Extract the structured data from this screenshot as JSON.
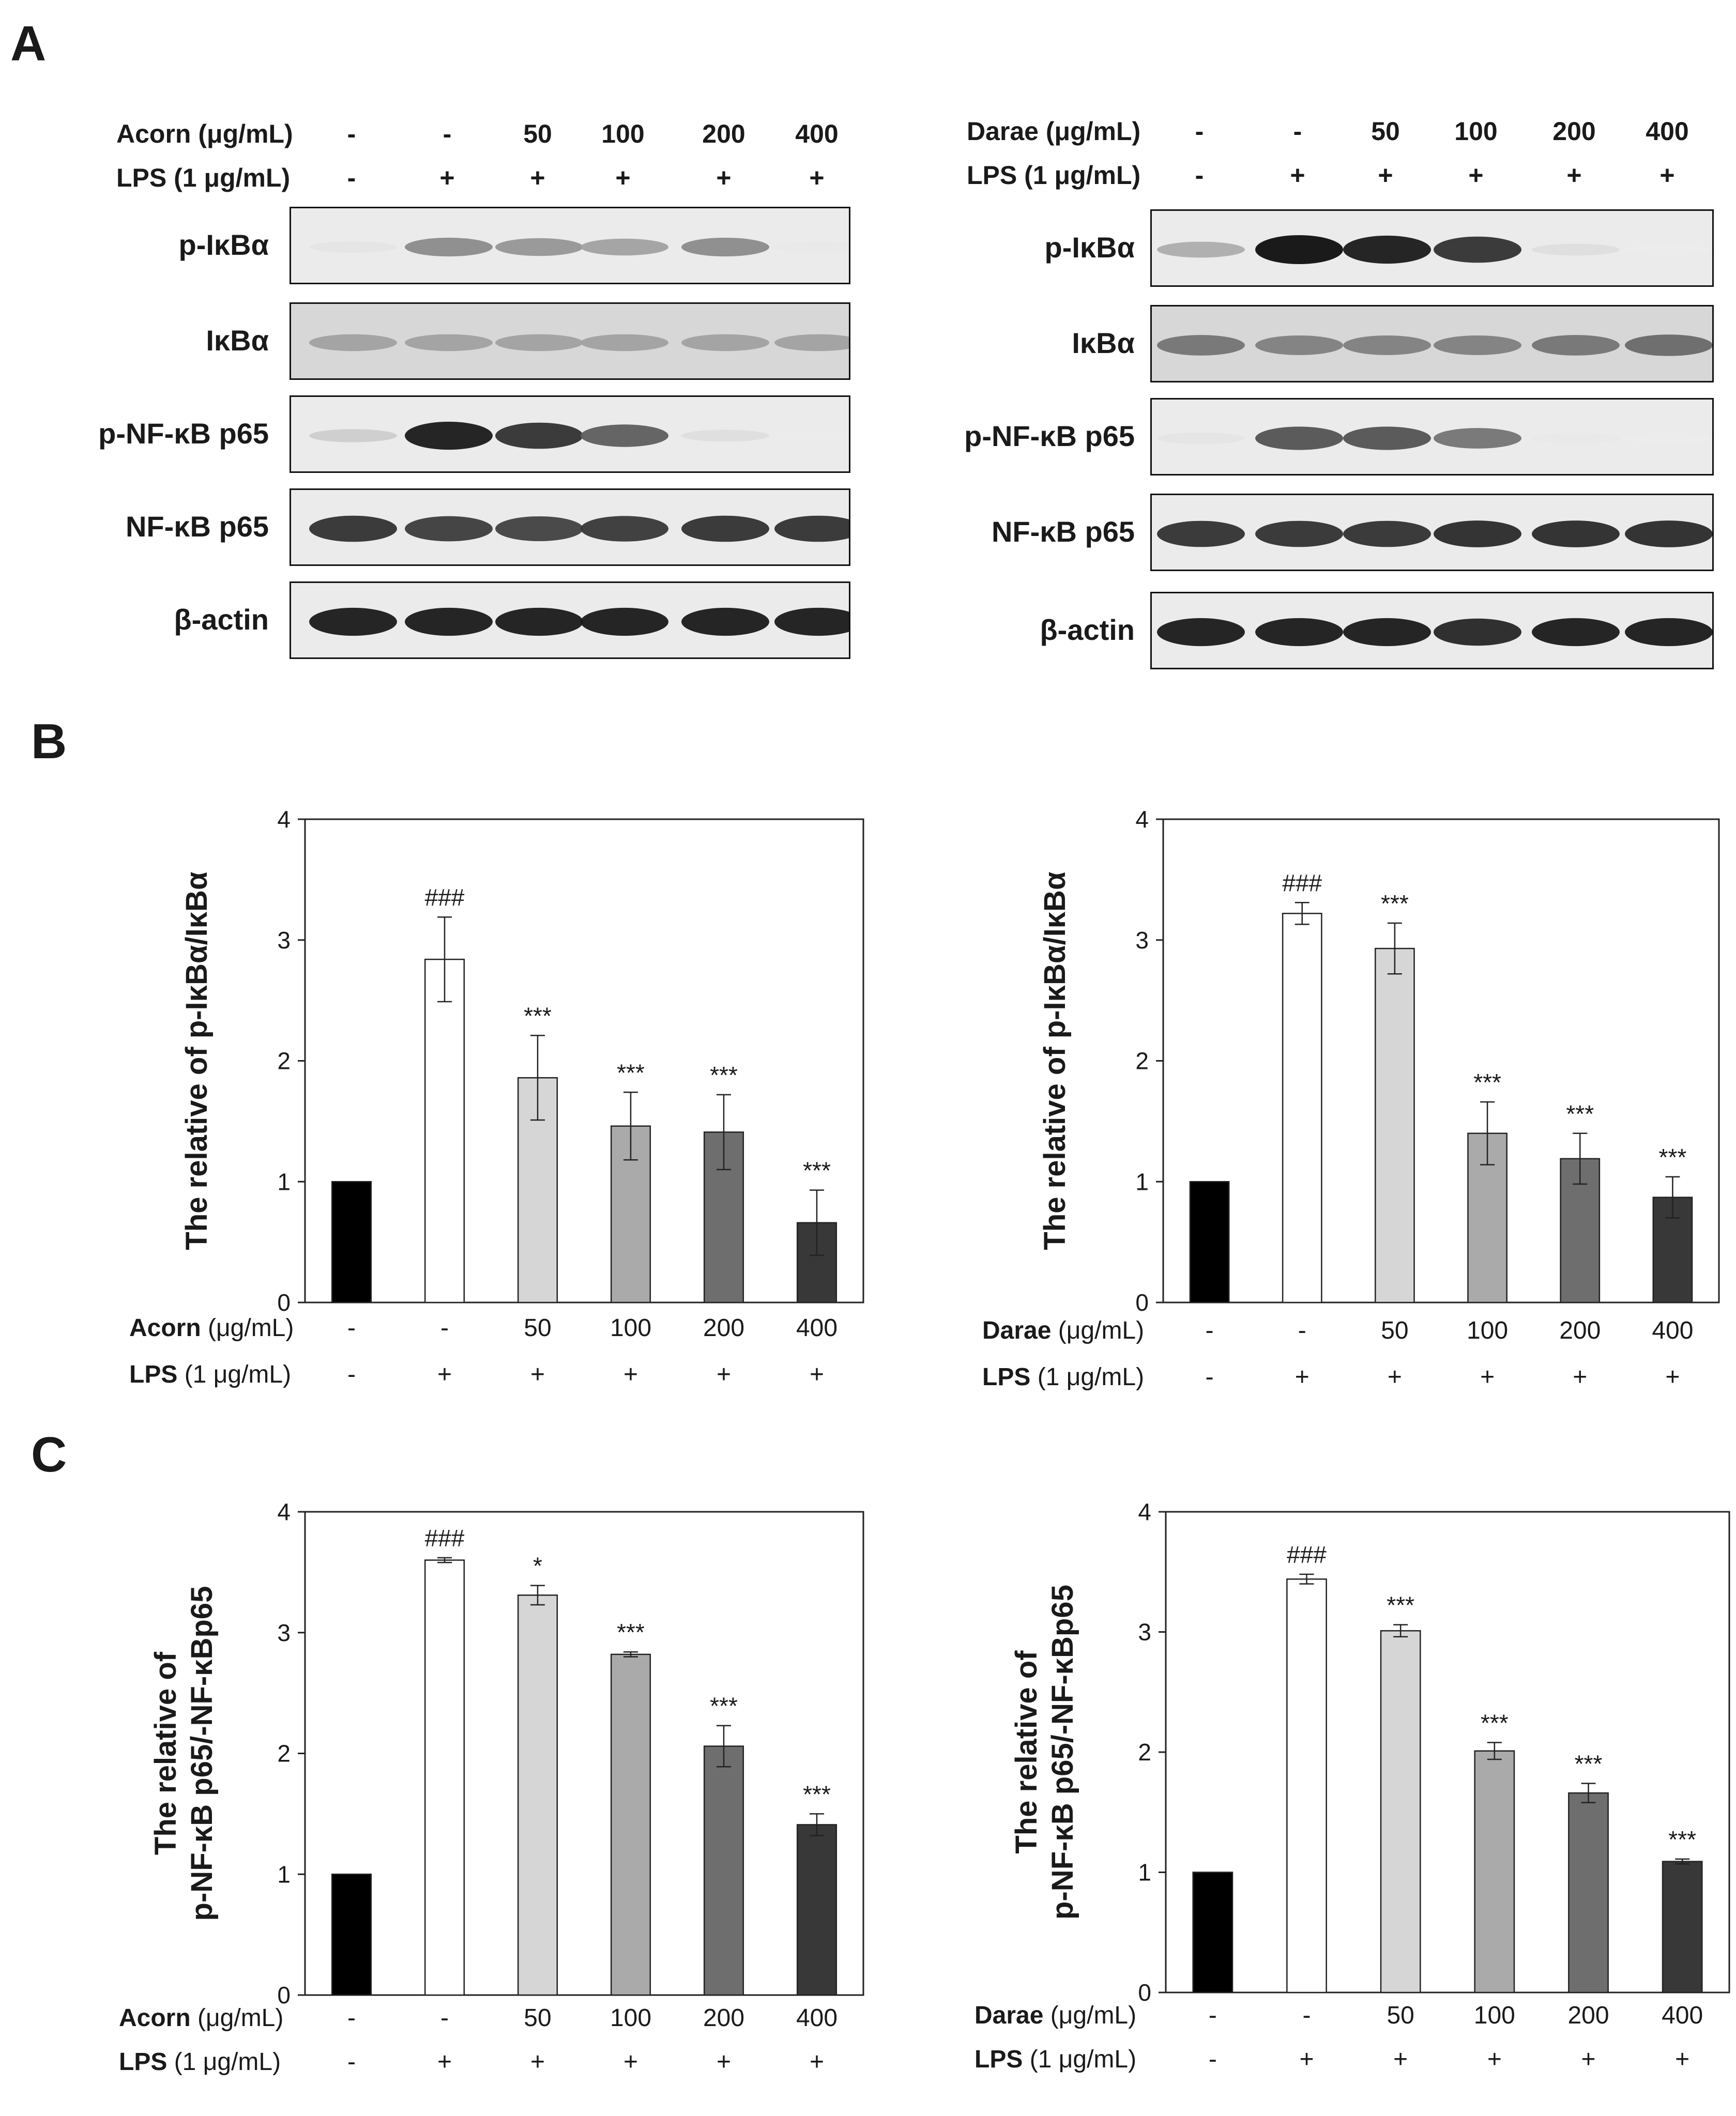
{
  "panels": {
    "a": "A",
    "b": "B",
    "c": "C"
  },
  "western": [
    {
      "treatment_label": "Acorn (μg/mL)",
      "lps_label": "LPS (1 μg/mL)",
      "treatment_values": [
        "-",
        "-",
        "50",
        "100",
        "200",
        "400"
      ],
      "lps_values": [
        "-",
        "+",
        "+",
        "+",
        "+",
        "+"
      ],
      "rows": [
        {
          "label": "p-IκBα",
          "intensity": [
            0.05,
            0.45,
            0.4,
            0.35,
            0.45,
            0.03
          ]
        },
        {
          "label": "IκBα",
          "intensity": [
            0.35,
            0.35,
            0.35,
            0.35,
            0.35,
            0.35
          ]
        },
        {
          "label": "p-NF-κB p65",
          "intensity": [
            0.15,
            0.95,
            0.85,
            0.65,
            0.08,
            0.02
          ]
        },
        {
          "label": "NF-κB p65",
          "intensity": [
            0.85,
            0.8,
            0.78,
            0.82,
            0.85,
            0.85
          ]
        },
        {
          "label": "β-actin",
          "intensity": [
            0.95,
            0.95,
            0.95,
            0.95,
            0.95,
            0.95
          ]
        }
      ]
    },
    {
      "treatment_label": "Darae (μg/mL)",
      "lps_label": "LPS (1 μg/mL)",
      "treatment_values": [
        "-",
        "-",
        "50",
        "100",
        "200",
        "400"
      ],
      "lps_values": [
        "-",
        "+",
        "+",
        "+",
        "+",
        "+"
      ],
      "rows": [
        {
          "label": "p-IκBα",
          "intensity": [
            0.3,
            1.0,
            0.95,
            0.85,
            0.08,
            0.02
          ]
        },
        {
          "label": "IκBα",
          "intensity": [
            0.55,
            0.5,
            0.5,
            0.5,
            0.55,
            0.6
          ]
        },
        {
          "label": "p-NF-κB p65",
          "intensity": [
            0.05,
            0.7,
            0.7,
            0.55,
            0.03,
            0.02
          ]
        },
        {
          "label": "NF-κB p65",
          "intensity": [
            0.85,
            0.85,
            0.85,
            0.88,
            0.88,
            0.88
          ]
        },
        {
          "label": "β-actin",
          "intensity": [
            0.95,
            0.95,
            0.95,
            0.9,
            0.95,
            0.95
          ]
        }
      ]
    }
  ],
  "chart_data": [
    {
      "type": "bar",
      "ylabel": [
        "The relative of p-IκBα/IκBα"
      ],
      "ylim": [
        0,
        4
      ],
      "yticks": [
        0,
        1,
        2,
        3,
        4
      ],
      "treatment_label": "Acorn",
      "treatment_unit": "(μg/mL)",
      "lps_label": "LPS",
      "lps_unit": "(1 μg/mL)",
      "categories": [
        "-",
        "-",
        "50",
        "100",
        "200",
        "400"
      ],
      "lps": [
        "-",
        "+",
        "+",
        "+",
        "+",
        "+"
      ],
      "values": [
        1.0,
        2.84,
        1.86,
        1.46,
        1.41,
        0.66
      ],
      "errors": [
        0,
        0.35,
        0.35,
        0.28,
        0.31,
        0.27
      ],
      "annotations": [
        "",
        "###",
        "***",
        "***",
        "***",
        "***"
      ],
      "colors": [
        "#000000",
        "#ffffff",
        "#d6d6d6",
        "#aaaaaa",
        "#6e6e6e",
        "#383838"
      ]
    },
    {
      "type": "bar",
      "ylabel": [
        "The relative of p-IκBα/IκBα"
      ],
      "ylim": [
        0,
        4
      ],
      "yticks": [
        0,
        1,
        2,
        3,
        4
      ],
      "treatment_label": "Darae",
      "treatment_unit": "(μg/mL)",
      "lps_label": "LPS",
      "lps_unit": "(1 μg/mL)",
      "categories": [
        "-",
        "-",
        "50",
        "100",
        "200",
        "400"
      ],
      "lps": [
        "-",
        "+",
        "+",
        "+",
        "+",
        "+"
      ],
      "values": [
        1.0,
        3.22,
        2.93,
        1.4,
        1.19,
        0.87
      ],
      "errors": [
        0,
        0.09,
        0.21,
        0.26,
        0.21,
        0.17
      ],
      "annotations": [
        "",
        "###",
        "***",
        "***",
        "***",
        "***"
      ],
      "colors": [
        "#000000",
        "#ffffff",
        "#d6d6d6",
        "#aaaaaa",
        "#6e6e6e",
        "#383838"
      ]
    },
    {
      "type": "bar",
      "ylabel": [
        "The relative of",
        "p-NF-κB p65/-NF-κBp65"
      ],
      "ylim": [
        0,
        4
      ],
      "yticks": [
        0,
        1,
        2,
        3,
        4
      ],
      "treatment_label": "Acorn",
      "treatment_unit": "(μg/mL)",
      "lps_label": "LPS",
      "lps_unit": "(1 μg/mL)",
      "categories": [
        "-",
        "-",
        "50",
        "100",
        "200",
        "400"
      ],
      "lps": [
        "-",
        "+",
        "+",
        "+",
        "+",
        "+"
      ],
      "values": [
        1.0,
        3.6,
        3.31,
        2.82,
        2.06,
        1.41
      ],
      "errors": [
        0,
        0.02,
        0.08,
        0.02,
        0.17,
        0.09
      ],
      "annotations": [
        "",
        "###",
        "*",
        "***",
        "***",
        "***"
      ],
      "colors": [
        "#000000",
        "#ffffff",
        "#d6d6d6",
        "#aaaaaa",
        "#6e6e6e",
        "#383838"
      ]
    },
    {
      "type": "bar",
      "ylabel": [
        "The relative of",
        "p-NF-κB p65/-NF-κBp65"
      ],
      "ylim": [
        0,
        4
      ],
      "yticks": [
        0,
        1,
        2,
        3,
        4
      ],
      "treatment_label": "Darae",
      "treatment_unit": "(μg/mL)",
      "lps_label": "LPS",
      "lps_unit": "(1 μg/mL)",
      "categories": [
        "-",
        "-",
        "50",
        "100",
        "200",
        "400"
      ],
      "lps": [
        "-",
        "+",
        "+",
        "+",
        "+",
        "+"
      ],
      "values": [
        1.0,
        3.44,
        3.01,
        2.01,
        1.66,
        1.09
      ],
      "errors": [
        0,
        0.04,
        0.05,
        0.07,
        0.08,
        0.02
      ],
      "annotations": [
        "",
        "###",
        "***",
        "***",
        "***",
        "***"
      ],
      "colors": [
        "#000000",
        "#ffffff",
        "#d6d6d6",
        "#aaaaaa",
        "#6e6e6e",
        "#383838"
      ]
    }
  ]
}
